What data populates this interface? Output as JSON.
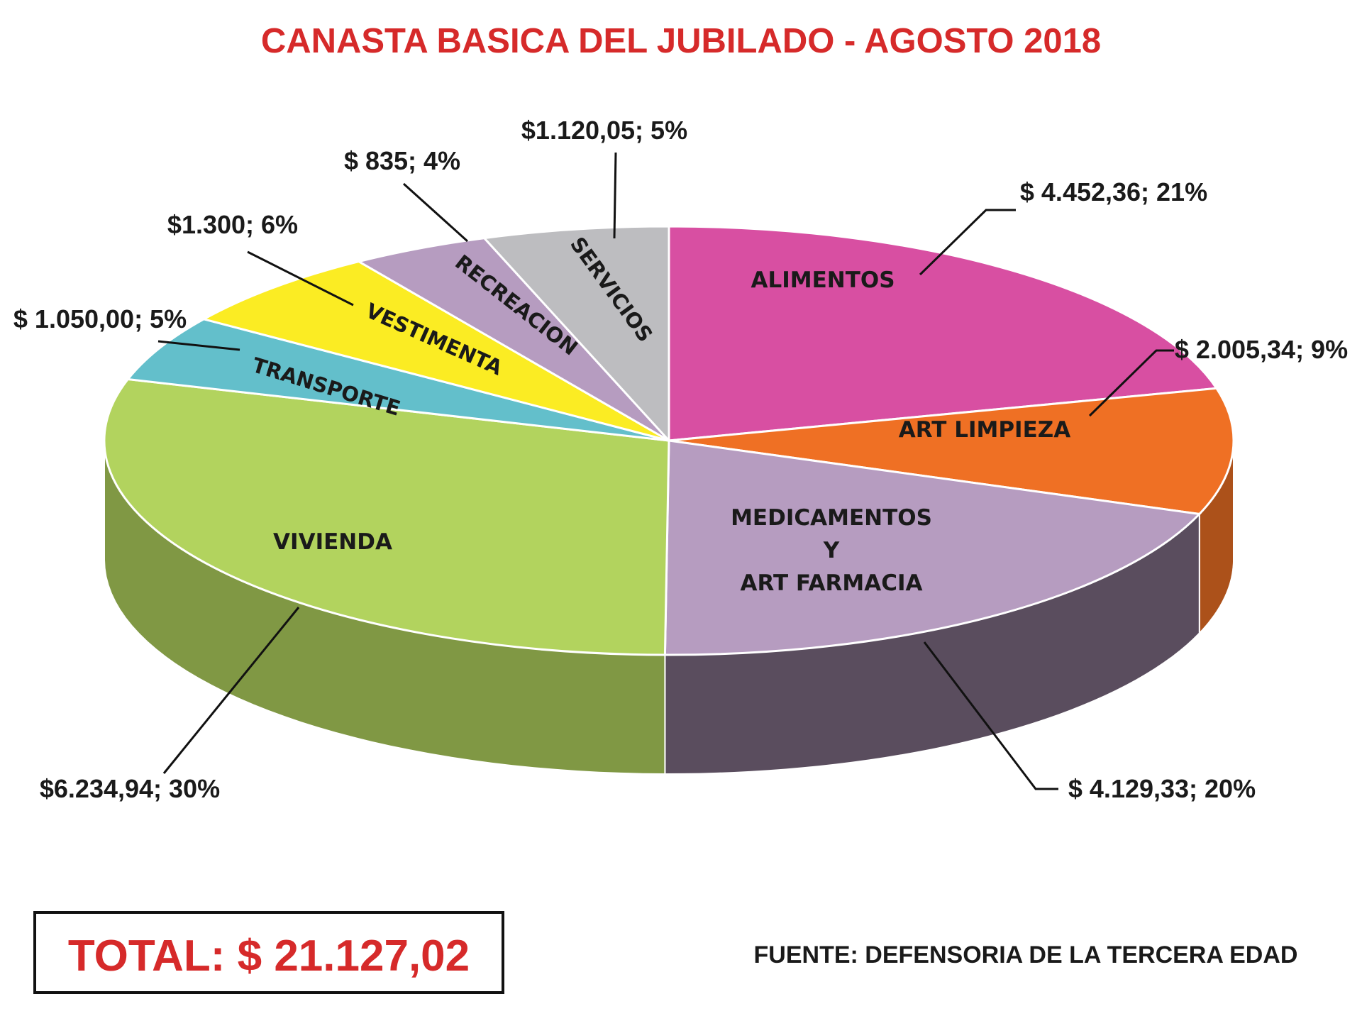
{
  "chart_data": {
    "type": "pie",
    "title": "CANASTA BASICA DEL JUBILADO - AGOSTO 2018",
    "slices": [
      {
        "category": "ALIMENTOS",
        "value": 4452.36,
        "value_label": "$ 4.452,36; 21%",
        "percent": 21,
        "color": "#d84fa2"
      },
      {
        "category": "ART LIMPIEZA",
        "value": 2005.34,
        "value_label": "$ 2.005,34; 9%",
        "percent": 9,
        "color": "#ef7024"
      },
      {
        "category": "MEDICAMENTOS Y ART FARMACIA",
        "lines": [
          "MEDICAMENTOS",
          "Y",
          "ART FARMACIA"
        ],
        "value": 4129.33,
        "value_label": "$ 4.129,33; 20%",
        "percent": 20,
        "color": "#b69cc0"
      },
      {
        "category": "VIVIENDA",
        "value": 6234.94,
        "value_label": "$6.234,94; 30%",
        "percent": 30,
        "color": "#b2d35e"
      },
      {
        "category": "TRANSPORTE",
        "value": 1050.0,
        "value_label": "$ 1.050,00; 5%",
        "percent": 5,
        "color": "#63bfcb"
      },
      {
        "category": "VESTIMENTA",
        "value": 1300,
        "value_label": "$1.300; 6%",
        "percent": 6,
        "color": "#fbec23"
      },
      {
        "category": "RECREACION",
        "value": 835,
        "value_label": "$ 835; 4%",
        "percent": 4,
        "color": "#b69cc0"
      },
      {
        "category": "SERVICIOS",
        "value": 1120.05,
        "value_label": "$1.120,05; 5%",
        "percent": 5,
        "color": "#bdbdc0"
      }
    ]
  },
  "total": {
    "text": "TOTAL: $ 21.127,02"
  },
  "source": {
    "text": "FUENTE: DEFENSORIA DE LA TERCERA EDAD"
  },
  "colors": {
    "title": "#d62a2a",
    "total": "#d62a2a",
    "box_border": "#111111"
  }
}
